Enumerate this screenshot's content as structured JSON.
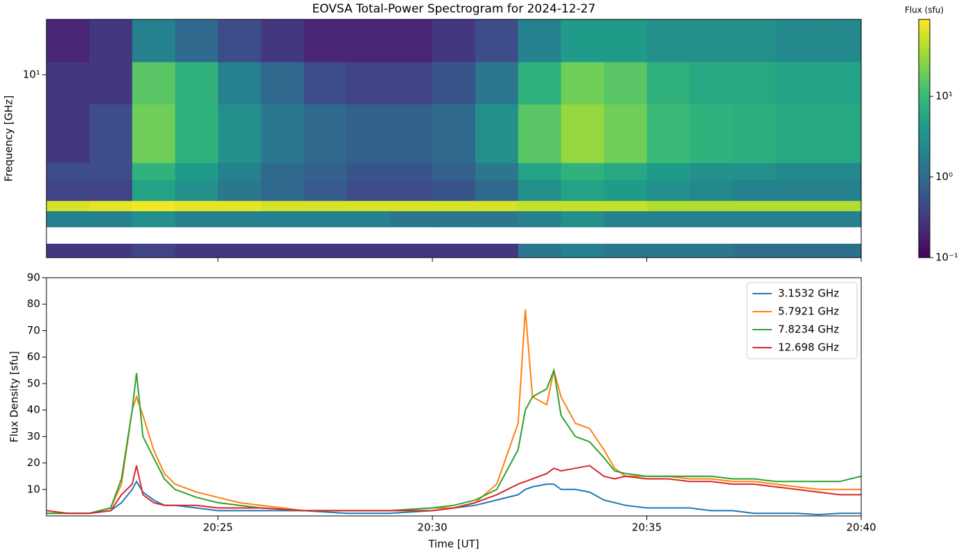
{
  "chart_data": [
    {
      "type": "heatmap",
      "title": "EOVSA Total-Power Spectrogram for 2024-12-27",
      "ylabel": "Frequency [GHz]",
      "ylog": true,
      "ylim": [
        1.2,
        19
      ],
      "yticks": [
        {
          "value": 10,
          "label": "10¹"
        }
      ],
      "time_edges": [
        "20:21",
        "20:22",
        "20:23",
        "20:24",
        "20:25",
        "20:26",
        "20:27",
        "20:28",
        "20:29",
        "20:30",
        "20:31",
        "20:32",
        "20:33",
        "20:34",
        "20:35",
        "20:36",
        "20:37",
        "20:38",
        "20:39",
        "20:40"
      ],
      "freq_edges": [
        1.2,
        1.41,
        1.71,
        2.06,
        2.32,
        2.95,
        3.6,
        7.1,
        11.6,
        19
      ],
      "z": [
        [
          0.3,
          0.3,
          0.4,
          0.3,
          0.3,
          0.3,
          0.3,
          0.3,
          0.3,
          0.3,
          0.3,
          1.5,
          2,
          1.5,
          1.5,
          1.5,
          1.2,
          1.2,
          1.2
        ],
        [
          null,
          null,
          null,
          null,
          null,
          null,
          null,
          null,
          null,
          null,
          null,
          null,
          null,
          null,
          null,
          null,
          null,
          null,
          null
        ],
        [
          2,
          2,
          3,
          2,
          2,
          2,
          2,
          2,
          1.5,
          1.5,
          1.5,
          2,
          3,
          2,
          2,
          2,
          2,
          2,
          2
        ],
        [
          60,
          70,
          80,
          70,
          70,
          60,
          60,
          60,
          60,
          60,
          60,
          50,
          50,
          50,
          40,
          40,
          40,
          40,
          40
        ],
        [
          0.4,
          0.4,
          5,
          3,
          1.5,
          1,
          0.7,
          0.5,
          0.5,
          0.6,
          1,
          3,
          5,
          4,
          3,
          2.5,
          2,
          2,
          2
        ],
        [
          0.5,
          0.5,
          8,
          4,
          2,
          1,
          0.8,
          0.6,
          0.6,
          0.8,
          1.5,
          5,
          8,
          6,
          4,
          3,
          3,
          2.5,
          2.5
        ],
        [
          0.3,
          0.5,
          20,
          8,
          3,
          1.5,
          1,
          0.8,
          0.8,
          1,
          3,
          15,
          30,
          20,
          10,
          8,
          7,
          6,
          6
        ],
        [
          0.3,
          0.3,
          15,
          8,
          2,
          1,
          0.5,
          0.4,
          0.4,
          0.6,
          1.5,
          8,
          20,
          15,
          8,
          6,
          6,
          5,
          5
        ],
        [
          0.2,
          0.3,
          2,
          1,
          0.5,
          0.3,
          0.2,
          0.2,
          0.2,
          0.3,
          0.5,
          2,
          4,
          4,
          3,
          3,
          3,
          2.5,
          2.5
        ]
      ],
      "colormap": "viridis",
      "colorbar": {
        "label": "Flux (sfu)",
        "log": true,
        "lim": [
          0.1,
          90
        ],
        "ticks": [
          {
            "value": 0.1,
            "label": "10⁻¹"
          },
          {
            "value": 1,
            "label": "10⁰"
          },
          {
            "value": 10,
            "label": "10¹"
          }
        ]
      }
    },
    {
      "type": "line",
      "xlabel": "Time [UT]",
      "ylabel": "Flux Density [sfu]",
      "xlim": [
        "20:21:00",
        "20:40:00"
      ],
      "xticks": [
        "20:25",
        "20:30",
        "20:35",
        "20:40"
      ],
      "ylim": [
        0,
        90
      ],
      "yticks": [
        10,
        20,
        30,
        40,
        50,
        60,
        70,
        80,
        90
      ],
      "legend": "upper right",
      "x": [
        "20:21:00",
        "20:21:30",
        "20:22:00",
        "20:22:30",
        "20:22:45",
        "20:23:00",
        "20:23:06",
        "20:23:15",
        "20:23:30",
        "20:23:45",
        "20:24:00",
        "20:24:30",
        "20:25:00",
        "20:25:30",
        "20:26:00",
        "20:27:00",
        "20:28:00",
        "20:29:00",
        "20:30:00",
        "20:30:30",
        "20:31:00",
        "20:31:30",
        "20:32:00",
        "20:32:10",
        "20:32:20",
        "20:32:40",
        "20:32:50",
        "20:33:00",
        "20:33:20",
        "20:33:40",
        "20:34:00",
        "20:34:15",
        "20:34:30",
        "20:35:00",
        "20:35:30",
        "20:36:00",
        "20:36:30",
        "20:37:00",
        "20:37:30",
        "20:38:00",
        "20:38:30",
        "20:39:00",
        "20:39:30",
        "20:40:00"
      ],
      "series": [
        {
          "name": "3.1532 GHz",
          "color": "#1f77b4",
          "values": [
            1,
            1,
            1,
            2,
            5,
            10,
            13,
            9,
            6,
            4,
            4,
            3,
            2,
            2,
            2,
            2,
            1,
            1,
            2,
            3,
            4,
            6,
            8,
            10,
            11,
            12,
            12,
            10,
            10,
            9,
            6,
            5,
            4,
            3,
            3,
            3,
            2,
            2,
            1,
            1,
            1,
            0.5,
            1,
            1
          ]
        },
        {
          "name": "5.7921 GHz",
          "color": "#ff7f0e",
          "values": [
            1,
            1,
            1,
            3,
            12,
            40,
            45,
            38,
            25,
            16,
            12,
            9,
            7,
            5,
            4,
            2,
            2,
            2,
            3,
            3,
            5,
            12,
            35,
            78,
            45,
            42,
            55,
            45,
            35,
            33,
            25,
            18,
            15,
            15,
            15,
            14,
            14,
            13,
            13,
            12,
            11,
            10,
            10,
            10
          ]
        },
        {
          "name": "7.8234 GHz",
          "color": "#2ca02c",
          "values": [
            1,
            1,
            1,
            3,
            14,
            40,
            54,
            30,
            22,
            14,
            10,
            7,
            5,
            4,
            3,
            2,
            2,
            2,
            3,
            4,
            6,
            10,
            25,
            40,
            45,
            48,
            55,
            38,
            30,
            28,
            22,
            17,
            16,
            15,
            15,
            15,
            15,
            14,
            14,
            13,
            13,
            13,
            13,
            15
          ]
        },
        {
          "name": "12.698 GHz",
          "color": "#d62728",
          "values": [
            2,
            1,
            1,
            2,
            8,
            12,
            19,
            8,
            5,
            4,
            4,
            4,
            3,
            3,
            3,
            2,
            2,
            2,
            2,
            3,
            5,
            8,
            12,
            13,
            14,
            16,
            18,
            17,
            18,
            19,
            15,
            14,
            15,
            14,
            14,
            13,
            13,
            12,
            12,
            11,
            10,
            9,
            8,
            8
          ]
        }
      ]
    }
  ]
}
